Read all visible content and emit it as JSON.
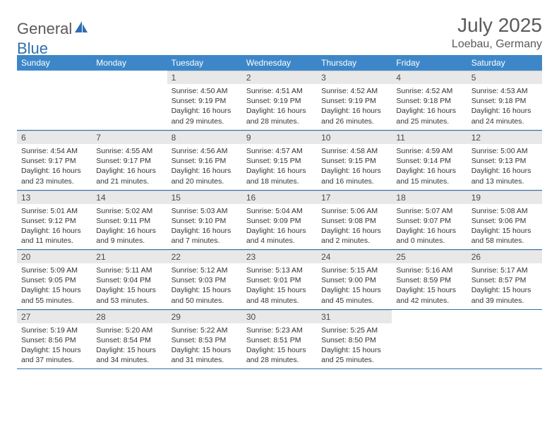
{
  "brand": {
    "part1": "General",
    "part2": "Blue"
  },
  "title": "July 2025",
  "location": "Loebau, Germany",
  "colors": {
    "header_bg": "#3d87c9",
    "header_text": "#ffffff",
    "daynum_bg": "#e8e8e8",
    "text": "#333333",
    "rule": "#2f6fb0",
    "brand_gray": "#5a5a5a",
    "brand_blue": "#2f6fb0",
    "page_bg": "#ffffff"
  },
  "days_of_week": [
    "Sunday",
    "Monday",
    "Tuesday",
    "Wednesday",
    "Thursday",
    "Friday",
    "Saturday"
  ],
  "weeks": [
    [
      null,
      null,
      {
        "n": "1",
        "sunrise": "Sunrise: 4:50 AM",
        "sunset": "Sunset: 9:19 PM",
        "day1": "Daylight: 16 hours",
        "day2": "and 29 minutes."
      },
      {
        "n": "2",
        "sunrise": "Sunrise: 4:51 AM",
        "sunset": "Sunset: 9:19 PM",
        "day1": "Daylight: 16 hours",
        "day2": "and 28 minutes."
      },
      {
        "n": "3",
        "sunrise": "Sunrise: 4:52 AM",
        "sunset": "Sunset: 9:19 PM",
        "day1": "Daylight: 16 hours",
        "day2": "and 26 minutes."
      },
      {
        "n": "4",
        "sunrise": "Sunrise: 4:52 AM",
        "sunset": "Sunset: 9:18 PM",
        "day1": "Daylight: 16 hours",
        "day2": "and 25 minutes."
      },
      {
        "n": "5",
        "sunrise": "Sunrise: 4:53 AM",
        "sunset": "Sunset: 9:18 PM",
        "day1": "Daylight: 16 hours",
        "day2": "and 24 minutes."
      }
    ],
    [
      {
        "n": "6",
        "sunrise": "Sunrise: 4:54 AM",
        "sunset": "Sunset: 9:17 PM",
        "day1": "Daylight: 16 hours",
        "day2": "and 23 minutes."
      },
      {
        "n": "7",
        "sunrise": "Sunrise: 4:55 AM",
        "sunset": "Sunset: 9:17 PM",
        "day1": "Daylight: 16 hours",
        "day2": "and 21 minutes."
      },
      {
        "n": "8",
        "sunrise": "Sunrise: 4:56 AM",
        "sunset": "Sunset: 9:16 PM",
        "day1": "Daylight: 16 hours",
        "day2": "and 20 minutes."
      },
      {
        "n": "9",
        "sunrise": "Sunrise: 4:57 AM",
        "sunset": "Sunset: 9:15 PM",
        "day1": "Daylight: 16 hours",
        "day2": "and 18 minutes."
      },
      {
        "n": "10",
        "sunrise": "Sunrise: 4:58 AM",
        "sunset": "Sunset: 9:15 PM",
        "day1": "Daylight: 16 hours",
        "day2": "and 16 minutes."
      },
      {
        "n": "11",
        "sunrise": "Sunrise: 4:59 AM",
        "sunset": "Sunset: 9:14 PM",
        "day1": "Daylight: 16 hours",
        "day2": "and 15 minutes."
      },
      {
        "n": "12",
        "sunrise": "Sunrise: 5:00 AM",
        "sunset": "Sunset: 9:13 PM",
        "day1": "Daylight: 16 hours",
        "day2": "and 13 minutes."
      }
    ],
    [
      {
        "n": "13",
        "sunrise": "Sunrise: 5:01 AM",
        "sunset": "Sunset: 9:12 PM",
        "day1": "Daylight: 16 hours",
        "day2": "and 11 minutes."
      },
      {
        "n": "14",
        "sunrise": "Sunrise: 5:02 AM",
        "sunset": "Sunset: 9:11 PM",
        "day1": "Daylight: 16 hours",
        "day2": "and 9 minutes."
      },
      {
        "n": "15",
        "sunrise": "Sunrise: 5:03 AM",
        "sunset": "Sunset: 9:10 PM",
        "day1": "Daylight: 16 hours",
        "day2": "and 7 minutes."
      },
      {
        "n": "16",
        "sunrise": "Sunrise: 5:04 AM",
        "sunset": "Sunset: 9:09 PM",
        "day1": "Daylight: 16 hours",
        "day2": "and 4 minutes."
      },
      {
        "n": "17",
        "sunrise": "Sunrise: 5:06 AM",
        "sunset": "Sunset: 9:08 PM",
        "day1": "Daylight: 16 hours",
        "day2": "and 2 minutes."
      },
      {
        "n": "18",
        "sunrise": "Sunrise: 5:07 AM",
        "sunset": "Sunset: 9:07 PM",
        "day1": "Daylight: 16 hours",
        "day2": "and 0 minutes."
      },
      {
        "n": "19",
        "sunrise": "Sunrise: 5:08 AM",
        "sunset": "Sunset: 9:06 PM",
        "day1": "Daylight: 15 hours",
        "day2": "and 58 minutes."
      }
    ],
    [
      {
        "n": "20",
        "sunrise": "Sunrise: 5:09 AM",
        "sunset": "Sunset: 9:05 PM",
        "day1": "Daylight: 15 hours",
        "day2": "and 55 minutes."
      },
      {
        "n": "21",
        "sunrise": "Sunrise: 5:11 AM",
        "sunset": "Sunset: 9:04 PM",
        "day1": "Daylight: 15 hours",
        "day2": "and 53 minutes."
      },
      {
        "n": "22",
        "sunrise": "Sunrise: 5:12 AM",
        "sunset": "Sunset: 9:03 PM",
        "day1": "Daylight: 15 hours",
        "day2": "and 50 minutes."
      },
      {
        "n": "23",
        "sunrise": "Sunrise: 5:13 AM",
        "sunset": "Sunset: 9:01 PM",
        "day1": "Daylight: 15 hours",
        "day2": "and 48 minutes."
      },
      {
        "n": "24",
        "sunrise": "Sunrise: 5:15 AM",
        "sunset": "Sunset: 9:00 PM",
        "day1": "Daylight: 15 hours",
        "day2": "and 45 minutes."
      },
      {
        "n": "25",
        "sunrise": "Sunrise: 5:16 AM",
        "sunset": "Sunset: 8:59 PM",
        "day1": "Daylight: 15 hours",
        "day2": "and 42 minutes."
      },
      {
        "n": "26",
        "sunrise": "Sunrise: 5:17 AM",
        "sunset": "Sunset: 8:57 PM",
        "day1": "Daylight: 15 hours",
        "day2": "and 39 minutes."
      }
    ],
    [
      {
        "n": "27",
        "sunrise": "Sunrise: 5:19 AM",
        "sunset": "Sunset: 8:56 PM",
        "day1": "Daylight: 15 hours",
        "day2": "and 37 minutes."
      },
      {
        "n": "28",
        "sunrise": "Sunrise: 5:20 AM",
        "sunset": "Sunset: 8:54 PM",
        "day1": "Daylight: 15 hours",
        "day2": "and 34 minutes."
      },
      {
        "n": "29",
        "sunrise": "Sunrise: 5:22 AM",
        "sunset": "Sunset: 8:53 PM",
        "day1": "Daylight: 15 hours",
        "day2": "and 31 minutes."
      },
      {
        "n": "30",
        "sunrise": "Sunrise: 5:23 AM",
        "sunset": "Sunset: 8:51 PM",
        "day1": "Daylight: 15 hours",
        "day2": "and 28 minutes."
      },
      {
        "n": "31",
        "sunrise": "Sunrise: 5:25 AM",
        "sunset": "Sunset: 8:50 PM",
        "day1": "Daylight: 15 hours",
        "day2": "and 25 minutes."
      },
      null,
      null
    ]
  ]
}
